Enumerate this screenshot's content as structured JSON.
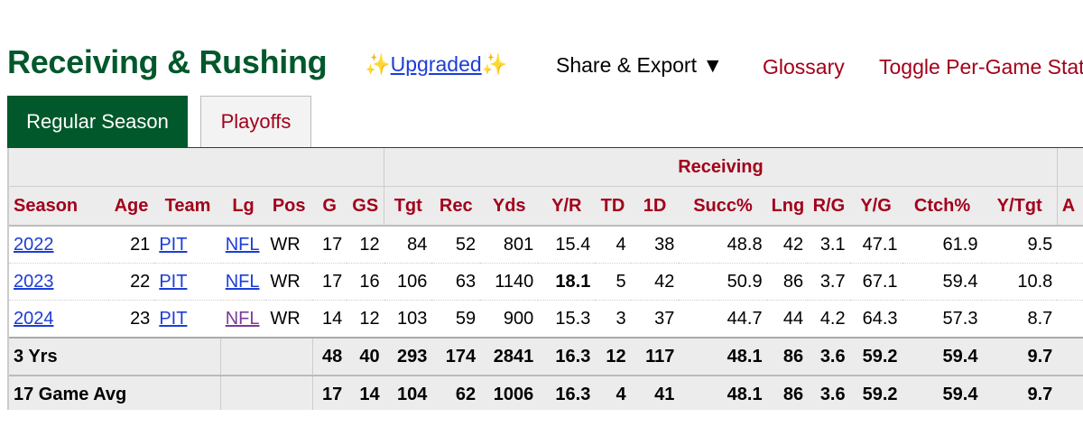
{
  "header": {
    "title": "Receiving & Rushing",
    "sparkle": "✨",
    "upgraded": "Upgraded",
    "share_export": "Share & Export ▼",
    "glossary": "Glossary",
    "toggle": "Toggle Per-Game Stats"
  },
  "tabs": {
    "regular": "Regular Season",
    "playoffs": "Playoffs"
  },
  "table": {
    "over_header": "Receiving",
    "columns": [
      "Season",
      "Age",
      "Team",
      "Lg",
      "Pos",
      "G",
      "GS",
      "Tgt",
      "Rec",
      "Yds",
      "Y/R",
      "TD",
      "1D",
      "Succ%",
      "Lng",
      "R/G",
      "Y/G",
      "Ctch%",
      "Y/Tgt",
      "A"
    ],
    "rows": [
      {
        "season": "2022",
        "age": "21",
        "team": "PIT",
        "lg": "NFL",
        "pos": "WR",
        "g": "17",
        "gs": "12",
        "tgt": "84",
        "rec": "52",
        "yds": "801",
        "yr": "15.4",
        "td": "4",
        "fd": "38",
        "succ": "48.8",
        "lng": "42",
        "rg": "3.1",
        "yg": "47.1",
        "ctch": "61.9",
        "ytgt": "9.5"
      },
      {
        "season": "2023",
        "age": "22",
        "team": "PIT",
        "lg": "NFL",
        "pos": "WR",
        "g": "17",
        "gs": "16",
        "tgt": "106",
        "rec": "63",
        "yds": "1140",
        "yr": "18.1",
        "td": "5",
        "fd": "42",
        "succ": "50.9",
        "lng": "86",
        "rg": "3.7",
        "yg": "67.1",
        "ctch": "59.4",
        "ytgt": "10.8"
      },
      {
        "season": "2024",
        "age": "23",
        "team": "PIT",
        "lg": "NFL",
        "pos": "WR",
        "g": "14",
        "gs": "12",
        "tgt": "103",
        "rec": "59",
        "yds": "900",
        "yr": "15.3",
        "td": "3",
        "fd": "37",
        "succ": "44.7",
        "lng": "44",
        "rg": "4.2",
        "yg": "64.3",
        "ctch": "57.3",
        "ytgt": "8.7"
      }
    ],
    "totals": [
      {
        "label": "3 Yrs",
        "g": "48",
        "gs": "40",
        "tgt": "293",
        "rec": "174",
        "yds": "2841",
        "yr": "16.3",
        "td": "12",
        "fd": "117",
        "succ": "48.1",
        "lng": "86",
        "rg": "3.6",
        "yg": "59.2",
        "ctch": "59.4",
        "ytgt": "9.7"
      },
      {
        "label": "17 Game Avg",
        "g": "17",
        "gs": "14",
        "tgt": "104",
        "rec": "62",
        "yds": "1006",
        "yr": "16.3",
        "td": "4",
        "fd": "41",
        "succ": "48.1",
        "lng": "86",
        "rg": "3.6",
        "yg": "59.2",
        "ctch": "59.4",
        "ytgt": "9.7"
      }
    ]
  },
  "colors": {
    "brand_green": "#00582b",
    "header_red": "#a2001a",
    "link_blue": "#1c3dd6",
    "visited_purple": "#7a3b9a"
  }
}
